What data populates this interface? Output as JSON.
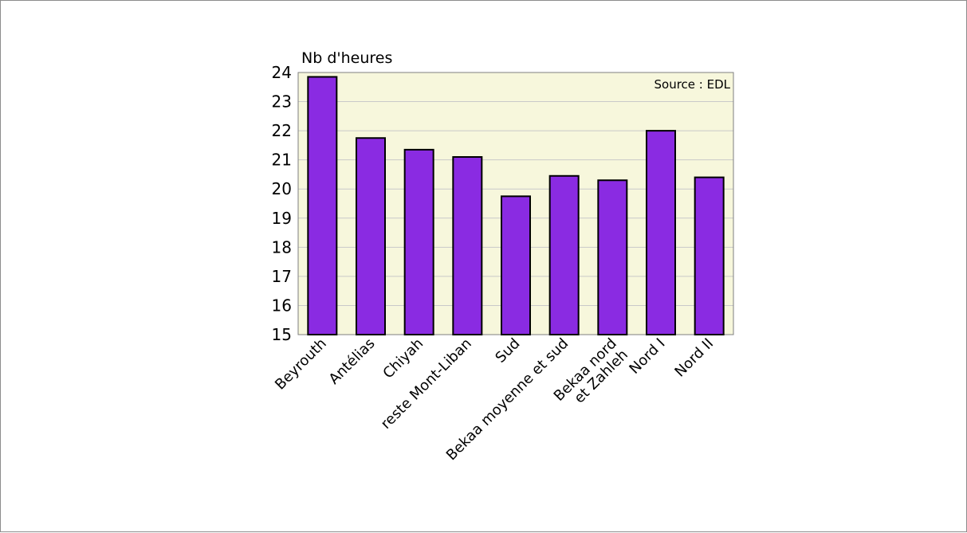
{
  "chart_data": {
    "type": "bar",
    "title": "",
    "ylabel": "Nb d'heures",
    "xlabel": "",
    "annotation": "Source : EDL",
    "ylim": [
      15,
      24
    ],
    "yticks": [
      15,
      16,
      17,
      18,
      19,
      20,
      21,
      22,
      23,
      24
    ],
    "grid": true,
    "categories": [
      [
        "Beyrouth"
      ],
      [
        "Antélias"
      ],
      [
        "Chiyah"
      ],
      [
        "reste Mont-Liban"
      ],
      [
        "Sud"
      ],
      [
        "Bekaa moyenne et sud"
      ],
      [
        "Bekaa nord",
        "et Zahleh"
      ],
      [
        "Nord I"
      ],
      [
        "Nord II"
      ]
    ],
    "values": [
      23.85,
      21.75,
      21.35,
      21.1,
      19.75,
      20.45,
      20.3,
      22.0,
      20.4
    ],
    "colors": {
      "bar_fill": "#8a2be2",
      "bar_stroke": "#000000",
      "plot_bg": "#f7f7dc",
      "grid": "#c9c9c9",
      "axis": "#7f7f7f"
    }
  }
}
